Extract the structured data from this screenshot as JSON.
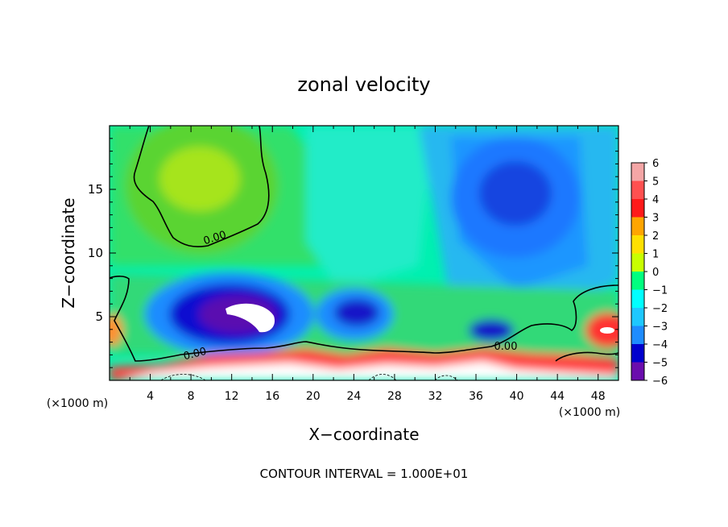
{
  "chart_data": {
    "type": "heatmap",
    "title": "zonal velocity",
    "xlabel": "X−coordinate",
    "ylabel": "Z−coordinate",
    "x_unit_left": "(×1000 m)",
    "x_unit_right": "(×1000 m)",
    "footer": "CONTOUR INTERVAL = 1.000E+01",
    "xlim": [
      0,
      50
    ],
    "ylim": [
      0,
      20
    ],
    "x_ticks": [
      4,
      8,
      12,
      16,
      20,
      24,
      28,
      32,
      36,
      40,
      44,
      48
    ],
    "x_tick_labels": [
      "4",
      "8",
      "12",
      "16",
      "20",
      "24",
      "28",
      "32",
      "36",
      "40",
      "44",
      "48"
    ],
    "y_ticks": [
      5,
      10,
      15
    ],
    "y_tick_labels": [
      "5",
      "10",
      "15"
    ],
    "contour_labels": [
      "0.00",
      "0.00",
      "0.00"
    ],
    "colorbar": {
      "values": [
        6,
        5,
        4,
        3,
        2,
        1,
        0,
        -1,
        -2,
        -3,
        -4,
        -5,
        -6
      ],
      "labels": [
        "6",
        "5",
        "4",
        "3",
        "2",
        "1",
        "0",
        "−1",
        "−2",
        "−3",
        "−4",
        "−5",
        "−6"
      ],
      "colors": [
        "#f4a6a6",
        "#ff5050",
        "#ff1a1a",
        "#ffa500",
        "#ffe000",
        "#c8ff00",
        "#4cd000",
        "#00ff7f",
        "#00ffff",
        "#1ec8ff",
        "#1e8cff",
        "#0000cd",
        "#6a0dad"
      ]
    },
    "features": [
      {
        "kind": "max",
        "x": 9.5,
        "z": 15.5,
        "value": 1.2
      },
      {
        "kind": "min",
        "x": 39,
        "z": 14,
        "value": -4.6
      },
      {
        "kind": "min",
        "x": 13.5,
        "z": 5.2,
        "value": -6.5
      },
      {
        "kind": "min",
        "x": 25,
        "z": 5.3,
        "value": -5.5
      },
      {
        "kind": "min",
        "x": 38.5,
        "z": 4.0,
        "value": -5.2
      },
      {
        "kind": "max",
        "x": 49,
        "z": 4.0,
        "value": 6.5
      },
      {
        "kind": "max",
        "x": 0.3,
        "z": 4.0,
        "value": 5.0
      }
    ]
  }
}
